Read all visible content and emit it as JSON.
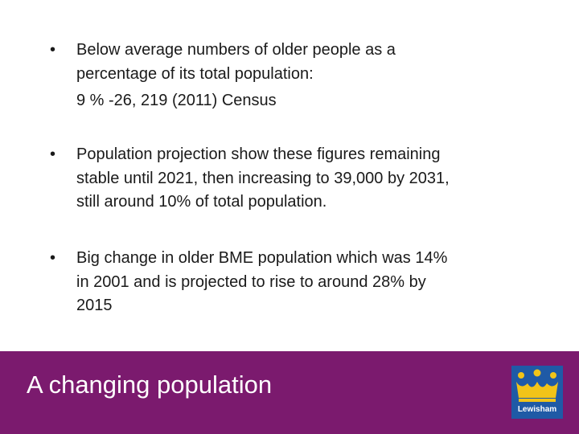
{
  "bullets": [
    {
      "lines": [
        "Below average numbers of older people as a",
        "percentage of its total population:"
      ],
      "note": "9 % -26, 219 (2011) Census"
    },
    {
      "lines": [
        "Population projection show these figures remaining",
        "stable until 2021, then increasing to 39,000 by 2031,",
        "still around 10% of total population."
      ]
    },
    {
      "lines": [
        "Big change in older BME population which was 14%",
        "in 2001 and is projected to rise to around 28% by",
        "2015"
      ]
    }
  ],
  "footer": {
    "title": "A changing population",
    "logo": {
      "label": "Lewisham"
    }
  }
}
